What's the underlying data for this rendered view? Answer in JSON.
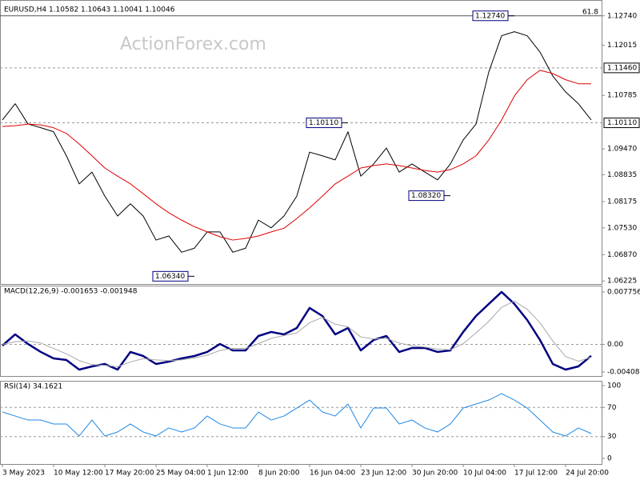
{
  "chart_data": [
    {
      "type": "line",
      "title": "EURUSD,H4  1.10582 1.10643 1.10041 1.10046",
      "watermark": "ActionForex.com",
      "categories": [
        "3 May 2023",
        null,
        null,
        null,
        "10 May 12:00",
        null,
        null,
        null,
        "17 May 20:00",
        null,
        null,
        null,
        "25 May 04:00",
        null,
        null,
        null,
        "1 Jun 12:00",
        null,
        null,
        null,
        "8 Jun 20:00",
        null,
        null,
        null,
        "16 Jun 04:00",
        null,
        null,
        null,
        "23 Jun 12:00",
        null,
        null,
        null,
        "30 Jun 20:00",
        null,
        null,
        null,
        "10 Jul 04:00",
        null,
        null,
        null,
        "17 Jul 12:00",
        null,
        null,
        null,
        "24 Jul 20:00",
        null,
        null
      ],
      "series": [
        {
          "color": "#000000",
          "line_width": 1,
          "values": [
            1.1018,
            1.1058,
            1.1008,
            1.0999,
            1.0989,
            1.093,
            1.0861,
            1.089,
            1.0831,
            1.0782,
            1.0812,
            1.0782,
            1.0723,
            1.0733,
            1.0693,
            1.0703,
            1.0743,
            1.0743,
            1.0693,
            1.0703,
            1.0772,
            1.0753,
            1.0782,
            1.0831,
            1.0939,
            1.093,
            1.092,
            1.0989,
            1.088,
            1.091,
            1.0949,
            1.089,
            1.091,
            1.089,
            1.0871,
            1.091,
            1.0969,
            1.1008,
            1.1136,
            1.1225,
            1.1235,
            1.1225,
            1.1185,
            1.1126,
            1.1087,
            1.1058,
            1.1018
          ]
        },
        {
          "color": "#e00000",
          "line_width": 1,
          "values": [
            1.1002,
            1.1004,
            1.1008,
            1.1006,
            1.0999,
            1.0985,
            1.0959,
            1.093,
            1.09,
            1.088,
            1.0861,
            1.0837,
            1.0812,
            1.079,
            1.0772,
            1.0756,
            1.0743,
            1.0731,
            1.0723,
            1.0727,
            1.0733,
            1.0743,
            1.0752,
            1.0776,
            1.0802,
            1.0831,
            1.0861,
            1.088,
            1.09,
            1.0906,
            1.091,
            1.0906,
            1.09,
            1.0894,
            1.089,
            1.0896,
            1.091,
            1.093,
            1.0969,
            1.1018,
            1.1077,
            1.1117,
            1.114,
            1.1132,
            1.1117,
            1.1107,
            1.1107
          ]
        }
      ],
      "ylim": [
        1.0615,
        1.1303
      ],
      "yticks": [
        {
          "value": 1.1274,
          "label": "1.12740"
        },
        1.12015,
        1.10785,
        {
          "value": 1.0947,
          "label": "1.09470"
        },
        1.08835,
        1.08175,
        {
          "value": 1.0753,
          "label": "1.07530"
        },
        {
          "value": 1.0687,
          "label": "1.06870"
        },
        1.06225
      ],
      "levels": [
        {
          "value": 1.1274,
          "name": "61.8",
          "style": "solid"
        },
        {
          "value": 1.1146,
          "label": "1.11460",
          "style": "dashed"
        },
        {
          "value": 1.1011,
          "label": "1.10110",
          "style": "dashed"
        }
      ],
      "annotations": [
        {
          "index": 40,
          "value": 1.1274,
          "label": "1.12740"
        },
        {
          "index": 27,
          "value": 1.1011,
          "label": "1.10110"
        },
        {
          "index": 35,
          "value": 1.0832,
          "label": "1.08320"
        },
        {
          "index": 15,
          "value": 1.0634,
          "label": "1.06340"
        }
      ]
    },
    {
      "type": "line",
      "title": "MACD(12,26,9) -0.001653 -0.001948",
      "series": [
        {
          "color": "#000080",
          "line_width": 2.5,
          "values": [
            -0.00018,
            0.00148,
            6e-05,
            -0.00112,
            -0.00207,
            -0.00231,
            -0.00373,
            -0.00326,
            -0.0029,
            -0.00373,
            -0.00112,
            -0.00172,
            -0.0029,
            -0.00255,
            -0.00207,
            -0.00172,
            -0.00112,
            6e-05,
            -0.00089,
            -0.00089,
            0.00124,
            0.00184,
            0.00148,
            0.00243,
            0.00539,
            0.0042,
            0.00148,
            0.00243,
            -0.00089,
            0.00065,
            0.00124,
            -0.00112,
            -0.00053,
            -0.00053,
            -0.00112,
            -0.00089,
            0.00184,
            0.0042,
            0.00598,
            0.00776,
            0.00598,
            0.00361,
            0.00065,
            -0.0029,
            -0.00373,
            -0.00326,
            -0.0017
          ]
        },
        {
          "color": "#a8a8a8",
          "line_width": 1,
          "values": [
            0,
            0.0004,
            0.0005,
            0.0002,
            -0.0006,
            -0.0014,
            -0.0024,
            -0.003,
            -0.0031,
            -0.0033,
            -0.0026,
            -0.0021,
            -0.0023,
            -0.0024,
            -0.0023,
            -0.002,
            -0.0016,
            -0.0009,
            -0.0006,
            -0.0006,
            0.0001,
            0.0009,
            0.0013,
            0.0017,
            0.0032,
            0.004,
            0.003,
            0.0026,
            0.0011,
            0.0008,
            0.0009,
            0.0002,
            -0.0002,
            -0.0004,
            -0.0007,
            -0.0008,
            0.0001,
            0.0017,
            0.0034,
            0.0055,
            0.0064,
            0.0052,
            0.0032,
            0.0005,
            -0.0018,
            -0.0025,
            -0.0019
          ]
        }
      ],
      "ylim": [
        -0.00468,
        0.0087
      ],
      "yticks": [
        0.007756,
        {
          "value": 0,
          "label": "0.00"
        },
        -0.004086
      ],
      "levels": [
        {
          "value": 0,
          "style": "dashed"
        }
      ]
    },
    {
      "type": "line",
      "title": "RSI(14) 34.1621",
      "series": [
        {
          "color": "#1e88e5",
          "line_width": 1,
          "values": [
            63.7,
            58.2,
            52.7,
            52.7,
            47.3,
            47.3,
            30.8,
            52.7,
            30.8,
            36.3,
            47.3,
            36.3,
            30.8,
            41.8,
            36.3,
            41.8,
            58.2,
            47.3,
            41.8,
            41.8,
            63.7,
            52.7,
            58.2,
            69.2,
            80.2,
            63.7,
            58.2,
            74.7,
            41.8,
            69.2,
            69.2,
            47.3,
            52.7,
            41.8,
            36.3,
            47.3,
            69.2,
            74.7,
            80.2,
            89,
            80.2,
            69.2,
            52.7,
            36.3,
            30.8,
            41.8,
            34.2
          ]
        }
      ],
      "ylim": [
        -7.7,
        106.6
      ],
      "yticks": [
        100,
        70,
        30,
        0
      ],
      "levels": [
        {
          "value": 70,
          "style": "dashed"
        },
        {
          "value": 30,
          "style": "dashed"
        }
      ]
    }
  ]
}
